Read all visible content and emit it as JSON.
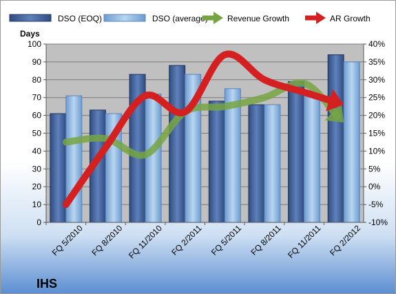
{
  "company": "IHS",
  "colors": {
    "dso_eoq": "#4f6fa8",
    "dso_average": "#9cc3e8",
    "revenue_growth": "#77a443",
    "ar_growth": "#d42020",
    "plot_bg": "#c0c0c0"
  },
  "chart_data": {
    "type": "bar",
    "categories": [
      "FQ 5/2010",
      "FQ 8/2010",
      "FQ 11/2010",
      "FQ 2/2011",
      "FQ 5/2011",
      "FQ 8/2011",
      "FQ 11/2011",
      "FQ 2/2012"
    ],
    "ylabel": "Days",
    "ylim": [
      0,
      100
    ],
    "yticks": [
      "0",
      "10",
      "20",
      "30",
      "40",
      "50",
      "60",
      "70",
      "80",
      "90",
      "100"
    ],
    "y2lim": [
      -10,
      40
    ],
    "y2ticks": [
      "-10%",
      "-5%",
      "0%",
      "5%",
      "10%",
      "15%",
      "20%",
      "25%",
      "30%",
      "35%",
      "40%"
    ],
    "grid": true,
    "legend_position": "top",
    "series": [
      {
        "name": "DSO (EOQ)",
        "kind": "bar",
        "axis": "left",
        "values": [
          61,
          63,
          83,
          88,
          68,
          66,
          79,
          94
        ]
      },
      {
        "name": "DSO (average)",
        "kind": "bar",
        "axis": "left",
        "values": [
          71,
          61,
          72,
          83,
          75,
          66,
          72,
          90
        ]
      },
      {
        "name": "Revenue Growth",
        "kind": "line",
        "axis": "right",
        "values": [
          12.5,
          13.5,
          9,
          21,
          22.5,
          25,
          29,
          18
        ]
      },
      {
        "name": "AR Growth",
        "kind": "line",
        "axis": "right",
        "values": [
          -5,
          11,
          25.5,
          21,
          37,
          30,
          26.5,
          23
        ]
      }
    ]
  }
}
